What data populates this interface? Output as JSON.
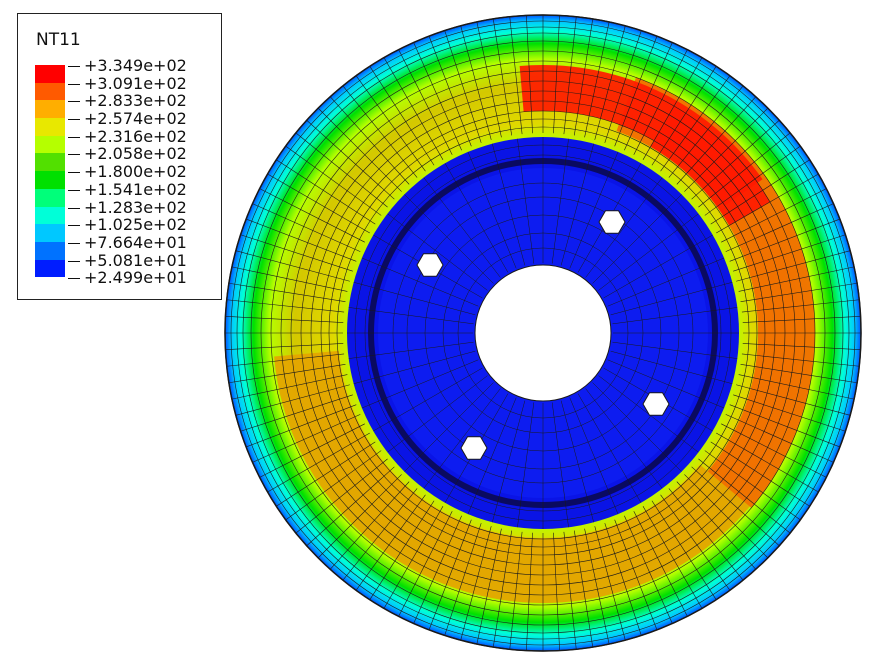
{
  "legend": {
    "title": "NT11",
    "values": [
      "+3.349e+02",
      "+3.091e+02",
      "+2.833e+02",
      "+2.574e+02",
      "+2.316e+02",
      "+2.058e+02",
      "+1.800e+02",
      "+1.541e+02",
      "+1.283e+02",
      "+1.025e+02",
      "+7.664e+01",
      "+5.081e+01",
      "+2.499e+01"
    ],
    "colors": [
      "#ff0000",
      "#ff5a00",
      "#ffae00",
      "#e8e800",
      "#b5ff00",
      "#52e000",
      "#00e000",
      "#00ff7a",
      "#00ffd8",
      "#00c8ff",
      "#0072ff",
      "#001dff"
    ]
  },
  "colors": {
    "mesh": "#1a1a1a",
    "hub": "#0a14e6",
    "rim_outer": "#0055ff",
    "hot": "#ff1a00",
    "warm": "#f36a00",
    "band_yellow": "#c8dc00",
    "band_orange": "#e4a400",
    "hole": "#ffffff"
  },
  "icons": [
    "bolt-hole-icon"
  ]
}
